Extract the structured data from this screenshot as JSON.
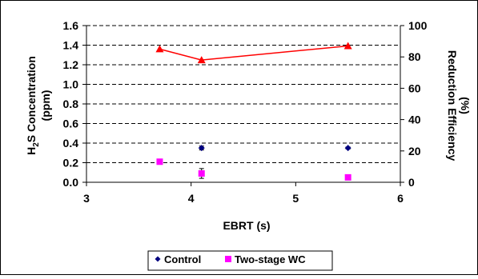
{
  "chart_data": {
    "type": "scatter",
    "x_axis": {
      "label": "EBRT (s)",
      "range": [
        3,
        6
      ],
      "ticks": [
        3,
        4,
        5,
        6
      ]
    },
    "y_axis_left": {
      "label_prefix": "H",
      "label_sub": "2",
      "label_suffix": "S Concentration",
      "label_unit": "(ppm)",
      "range": [
        0.0,
        1.6
      ],
      "ticks": [
        "0.0",
        "0.2",
        "0.4",
        "0.6",
        "0.8",
        "1.0",
        "1.2",
        "1.4",
        "1.6"
      ]
    },
    "y_axis_right": {
      "label_line1": "Reduction Efficiency",
      "label_line2": "(%)",
      "range": [
        0,
        100
      ],
      "ticks": [
        "0",
        "20",
        "40",
        "60",
        "80",
        "100"
      ]
    },
    "grid": "horizontal dashed",
    "legend_position": "bottom",
    "series": [
      {
        "name": "Control",
        "axis": "left",
        "marker": "diamond",
        "color": "#000080",
        "points": [
          {
            "x": 4.1,
            "y": 0.35,
            "err": 0.02
          },
          {
            "x": 5.5,
            "y": 0.35,
            "err": 0.01
          }
        ]
      },
      {
        "name": "Two-stage WC",
        "axis": "left",
        "marker": "square",
        "color": "#ff00ff",
        "points": [
          {
            "x": 3.7,
            "y": 0.21,
            "err": 0.01
          },
          {
            "x": 4.1,
            "y": 0.09,
            "err": 0.05
          },
          {
            "x": 5.5,
            "y": 0.05,
            "err": 0.01
          }
        ]
      },
      {
        "axis": "right",
        "marker": "triangle",
        "line": true,
        "color": "#ff0000",
        "points": [
          {
            "x": 3.7,
            "y": 85
          },
          {
            "x": 4.1,
            "y": 78
          },
          {
            "x": 5.5,
            "y": 87
          }
        ]
      }
    ]
  }
}
